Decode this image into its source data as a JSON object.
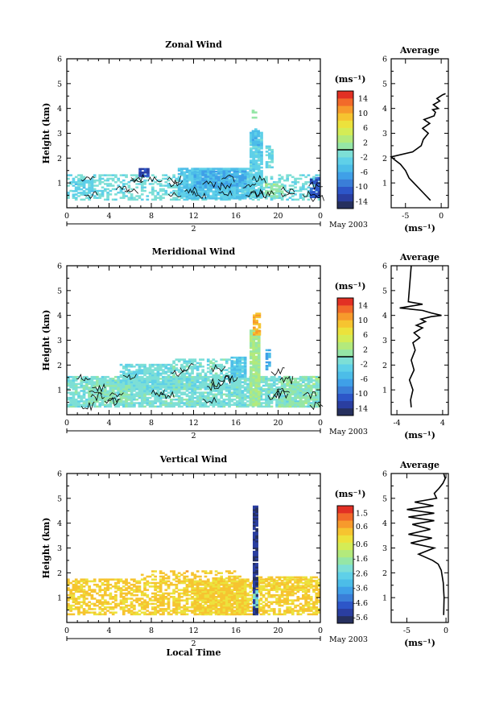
{
  "chart_data": [
    {
      "type": "heatmap",
      "title": "Zonal Wind",
      "xlabel": "",
      "ylabel": "Height (km)",
      "xlim": [
        0,
        24
      ],
      "ylim": [
        0,
        6
      ],
      "x_ticks": [
        "0",
        "4",
        "8",
        "12",
        "16",
        "20",
        "0"
      ],
      "y_ticks": [
        "1",
        "2",
        "3",
        "4",
        "5",
        "6"
      ],
      "day_label": "2",
      "date_label": "May 2003",
      "colorbar": {
        "unit": "(ms⁻¹)",
        "range": [
          -16,
          16
        ],
        "ticks": [
          "14",
          "10",
          "6",
          "2",
          "-2",
          "-6",
          "-10",
          "-14"
        ],
        "colors": [
          "#26305e",
          "#2a3ea0",
          "#2d56c8",
          "#3a7ed8",
          "#3fa0e8",
          "#4cbde8",
          "#5fd0e8",
          "#7ddfd6",
          "#95e6a6",
          "#b3ea7c",
          "#d4ec56",
          "#ece23c",
          "#f6c430",
          "#f79a2c",
          "#f26a2a",
          "#e23024"
        ],
        "zero_line_value": 0
      },
      "regions": [
        {
          "t": [
            0.0,
            24.0
          ],
          "h": [
            0.3,
            1.3
          ],
          "value": -1.5,
          "density": 0.42
        },
        {
          "t": [
            0.5,
            2.5
          ],
          "h": [
            0.5,
            1.1
          ],
          "value": -3.0,
          "density": 0.6
        },
        {
          "t": [
            10.5,
            17.5
          ],
          "h": [
            0.35,
            1.55
          ],
          "value": -4.0,
          "density": 0.85
        },
        {
          "t": [
            12.0,
            16.8
          ],
          "h": [
            0.8,
            1.45
          ],
          "value": -6.5,
          "density": 0.7
        },
        {
          "t": [
            17.3,
            18.5
          ],
          "h": [
            0.4,
            3.0
          ],
          "value": -2.8,
          "density": 0.9
        },
        {
          "t": [
            17.5,
            18.2
          ],
          "h": [
            2.5,
            3.15
          ],
          "value": -5.0,
          "density": 0.8
        },
        {
          "t": [
            18.8,
            19.5
          ],
          "h": [
            1.6,
            2.5
          ],
          "value": -2.5,
          "density": 0.7
        },
        {
          "t": [
            17.5,
            17.8
          ],
          "h": [
            3.6,
            3.95
          ],
          "value": 0.5,
          "density": 0.7
        },
        {
          "t": [
            6.8,
            7.8
          ],
          "h": [
            1.25,
            1.6
          ],
          "value": -12.0,
          "density": 0.9
        },
        {
          "t": [
            23.0,
            24.0
          ],
          "h": [
            0.4,
            1.2
          ],
          "value": -11.0,
          "density": 0.8
        },
        {
          "t": [
            18.5,
            20.5
          ],
          "h": [
            0.35,
            1.0
          ],
          "value": 1.0,
          "density": 0.45
        }
      ],
      "profile": {
        "title": "Average",
        "xlabel": "(ms⁻¹)",
        "xlim": [
          -7,
          1
        ],
        "x_ticks": [
          -5,
          0
        ],
        "x_tick_labels": [
          "-5",
          "0"
        ],
        "ylim": [
          0,
          6
        ],
        "y_ticks": [
          "1",
          "2",
          "3",
          "4",
          "5",
          "6"
        ],
        "x": [
          -1.5,
          -2.5,
          -3.5,
          -4.5,
          -5.0,
          -5.7,
          -6.6,
          -7.0,
          -4.0,
          -2.8,
          -2.5,
          -1.8,
          -2.6,
          -1.6,
          -2.4,
          -1.0,
          -0.8,
          -1.2,
          -0.4,
          -1.1,
          -0.2,
          -0.6,
          0.2,
          0.6
        ],
        "y": [
          0.3,
          0.6,
          0.9,
          1.2,
          1.5,
          1.75,
          1.95,
          2.05,
          2.25,
          2.5,
          2.75,
          3.0,
          3.2,
          3.4,
          3.55,
          3.7,
          3.85,
          3.95,
          4.0,
          4.15,
          4.3,
          4.4,
          4.55,
          4.6
        ]
      }
    },
    {
      "type": "heatmap",
      "title": "Meridional Wind",
      "xlabel": "",
      "ylabel": "Height (km)",
      "xlim": [
        0,
        24
      ],
      "ylim": [
        0,
        6
      ],
      "x_ticks": [
        "0",
        "4",
        "8",
        "12",
        "16",
        "20",
        "0"
      ],
      "y_ticks": [
        "1",
        "2",
        "3",
        "4",
        "5",
        "6"
      ],
      "day_label": "2",
      "date_label": "May 2003",
      "colorbar": {
        "unit": "(ms⁻¹)",
        "range": [
          -16,
          16
        ],
        "ticks": [
          "14",
          "10",
          "6",
          "2",
          "-2",
          "-6",
          "-10",
          "-14"
        ],
        "colors": [
          "#26305e",
          "#2a3ea0",
          "#2d56c8",
          "#3a7ed8",
          "#3fa0e8",
          "#4cbde8",
          "#5fd0e8",
          "#7ddfd6",
          "#95e6a6",
          "#b3ea7c",
          "#d4ec56",
          "#ece23c",
          "#f6c430",
          "#f79a2c",
          "#f26a2a",
          "#e23024"
        ],
        "zero_line_value": 0
      },
      "regions": [
        {
          "t": [
            0.0,
            24.0
          ],
          "h": [
            0.3,
            1.5
          ],
          "value": -1.0,
          "density": 0.8
        },
        {
          "t": [
            5.0,
            10.0
          ],
          "h": [
            1.0,
            2.0
          ],
          "value": -1.5,
          "density": 0.8
        },
        {
          "t": [
            10.0,
            17.0
          ],
          "h": [
            1.0,
            2.2
          ],
          "value": -1.2,
          "density": 0.6
        },
        {
          "t": [
            2.0,
            6.0
          ],
          "h": [
            0.5,
            1.2
          ],
          "value": 0.5,
          "density": 0.55
        },
        {
          "t": [
            15.5,
            17.0
          ],
          "h": [
            1.5,
            2.3
          ],
          "value": -4.0,
          "density": 0.8
        },
        {
          "t": [
            17.3,
            18.3
          ],
          "h": [
            0.35,
            3.4
          ],
          "value": 2.0,
          "density": 0.9
        },
        {
          "t": [
            17.6,
            18.3
          ],
          "h": [
            3.2,
            4.05
          ],
          "value": 10.0,
          "density": 0.85
        },
        {
          "t": [
            18.8,
            19.3
          ],
          "h": [
            1.8,
            2.6
          ],
          "value": -6.0,
          "density": 0.75
        },
        {
          "t": [
            20.0,
            24.0
          ],
          "h": [
            0.3,
            1.5
          ],
          "value": 0.8,
          "density": 0.55
        }
      ],
      "profile": {
        "title": "Average",
        "xlabel": "(ms⁻¹)",
        "xlim": [
          -5,
          5
        ],
        "x_ticks": [
          -4,
          4
        ],
        "x_tick_labels": [
          "-4",
          "4"
        ],
        "ylim": [
          0,
          6
        ],
        "y_ticks": [
          "1",
          "2",
          "3",
          "4",
          "5",
          "6"
        ],
        "x": [
          -1.5,
          -1.6,
          -1.2,
          -1.8,
          -1.0,
          -1.5,
          -0.8,
          -1.2,
          0.0,
          -1.0,
          0.5,
          -0.6,
          1.0,
          0.2,
          2.0,
          3.8,
          2.0,
          0.5,
          -3.5,
          0.5,
          -2.0,
          -1.5
        ],
        "y": [
          0.3,
          0.6,
          1.0,
          1.4,
          1.8,
          2.2,
          2.6,
          2.9,
          3.1,
          3.3,
          3.5,
          3.6,
          3.75,
          3.85,
          3.95,
          4.0,
          4.1,
          4.2,
          4.3,
          4.45,
          4.55,
          6.0
        ]
      }
    },
    {
      "type": "heatmap",
      "title": "Vertical Wind",
      "xlabel": "Local Time",
      "ylabel": "Height (km)",
      "xlim": [
        0,
        24
      ],
      "ylim": [
        0,
        6
      ],
      "x_ticks": [
        "0",
        "4",
        "8",
        "12",
        "16",
        "20",
        "0"
      ],
      "y_ticks": [
        "1",
        "2",
        "3",
        "4",
        "5",
        "6"
      ],
      "day_label": "2",
      "date_label": "May 2003",
      "colorbar": {
        "unit": "(ms⁻¹)",
        "range": [
          -6.0,
          2.0
        ],
        "ticks": [
          "1.5",
          "0.6",
          "-0.6",
          "-1.6",
          "-2.6",
          "-3.6",
          "-4.6",
          "-5.6"
        ],
        "colors": [
          "#26305e",
          "#2a3ea0",
          "#2d56c8",
          "#3a7ed8",
          "#3fa0e8",
          "#4cbde8",
          "#5fd0e8",
          "#7ddfd6",
          "#95e6a6",
          "#b3ea7c",
          "#d4ec56",
          "#ece23c",
          "#f6c430",
          "#f79a2c",
          "#f26a2a",
          "#e23024"
        ]
      },
      "regions": [
        {
          "t": [
            0.0,
            24.0
          ],
          "h": [
            0.3,
            1.75
          ],
          "value": 0.1,
          "density": 0.62
        },
        {
          "t": [
            7.0,
            16.5
          ],
          "h": [
            1.75,
            2.1
          ],
          "value": 0.15,
          "density": 0.45
        },
        {
          "t": [
            12.0,
            17.0
          ],
          "h": [
            0.3,
            1.7
          ],
          "value": 0.05,
          "density": 0.8
        },
        {
          "t": [
            18.0,
            24.0
          ],
          "h": [
            1.3,
            1.8
          ],
          "value": 0.0,
          "density": 0.65
        },
        {
          "t": [
            17.6,
            18.05
          ],
          "h": [
            0.3,
            4.7
          ],
          "value": -5.4,
          "density": 0.95
        },
        {
          "t": [
            17.6,
            18.05
          ],
          "h": [
            0.6,
            1.4
          ],
          "value": -2.2,
          "density": 0.6
        }
      ],
      "profile": {
        "title": "Average",
        "xlabel": "(ms⁻¹)",
        "xlim": [
          -7,
          0.3
        ],
        "x_ticks": [
          -5,
          0
        ],
        "x_tick_labels": [
          "-5",
          "0"
        ],
        "ylim": [
          0,
          6
        ],
        "y_ticks": [
          "1",
          "2",
          "3",
          "4",
          "5",
          "6"
        ],
        "x": [
          -0.3,
          -0.25,
          -0.35,
          -0.6,
          -1.0,
          -1.7,
          -3.5,
          -1.5,
          -4.5,
          -1.8,
          -4.8,
          -2.0,
          -4.3,
          -1.5,
          -4.8,
          -1.5,
          -5.0,
          -1.6,
          -4.0,
          -1.2,
          -1.5,
          -0.9,
          -0.4,
          -0.1,
          -0.3
        ],
        "y": [
          0.3,
          1.0,
          1.6,
          2.1,
          2.35,
          2.5,
          2.75,
          3.0,
          3.2,
          3.4,
          3.55,
          3.75,
          3.95,
          4.1,
          4.25,
          4.4,
          4.55,
          4.7,
          4.85,
          5.0,
          5.2,
          5.4,
          5.6,
          5.8,
          6.0
        ]
      }
    }
  ]
}
